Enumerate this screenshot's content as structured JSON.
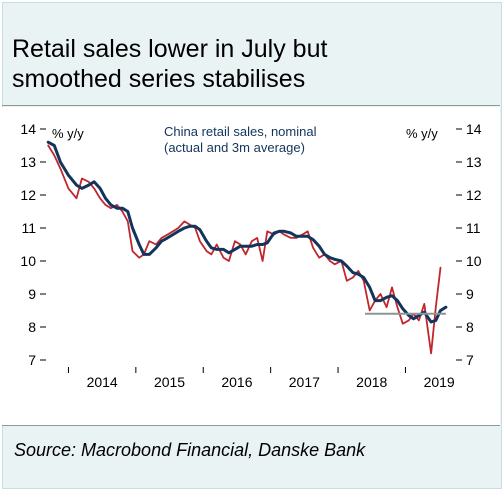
{
  "title_line1": "Retail sales lower in July but",
  "title_line2": "smoothed series stabilises",
  "source": "Source: Macrobond Financial, Danske Bank",
  "colors": {
    "panel_bg": "#e9f3f3",
    "actual": "#c0272d",
    "average": "#13345c",
    "reference": "#8c9596"
  },
  "chart_data": {
    "type": "line",
    "annotation_line1": "China retail sales, nominal",
    "annotation_line2": "(actual and 3m average)",
    "ylabel_left": "% y/y",
    "ylabel_right": "% y/y",
    "ylim": [
      7,
      14
    ],
    "yticks": [
      7,
      8,
      9,
      10,
      11,
      12,
      13,
      14
    ],
    "xlim": [
      2013.667,
      2019.75
    ],
    "xtick_labels": [
      "2014",
      "2015",
      "2016",
      "2017",
      "2018",
      "2019"
    ],
    "grid": false,
    "reference_line": {
      "value": 8.4,
      "from": 2018.4,
      "to": 2019.6
    },
    "series": [
      {
        "role": "actual",
        "x": [
          2013.7,
          2013.79,
          2013.88,
          2014.0,
          2014.12,
          2014.2,
          2014.3,
          2014.38,
          2014.47,
          2014.55,
          2014.63,
          2014.72,
          2014.8,
          2014.88,
          2014.95,
          2015.05,
          2015.12,
          2015.2,
          2015.3,
          2015.38,
          2015.47,
          2015.55,
          2015.63,
          2015.72,
          2015.8,
          2015.88,
          2015.95,
          2016.05,
          2016.12,
          2016.2,
          2016.3,
          2016.38,
          2016.47,
          2016.55,
          2016.63,
          2016.72,
          2016.8,
          2016.88,
          2016.95,
          2017.05,
          2017.13,
          2017.2,
          2017.3,
          2017.38,
          2017.47,
          2017.55,
          2017.63,
          2017.72,
          2017.8,
          2017.88,
          2017.95,
          2018.05,
          2018.13,
          2018.22,
          2018.3,
          2018.38,
          2018.47,
          2018.55,
          2018.63,
          2018.72,
          2018.8,
          2018.88,
          2018.96,
          2019.05,
          2019.12,
          2019.2,
          2019.28,
          2019.38,
          2019.45,
          2019.52
        ],
        "values": [
          13.5,
          13.2,
          12.8,
          12.2,
          11.9,
          12.5,
          12.4,
          12.2,
          11.9,
          11.7,
          11.6,
          11.7,
          11.5,
          11.2,
          10.3,
          10.1,
          10.2,
          10.6,
          10.5,
          10.7,
          10.8,
          10.9,
          11.0,
          11.2,
          11.1,
          11.0,
          10.6,
          10.3,
          10.2,
          10.5,
          10.1,
          10.0,
          10.6,
          10.5,
          10.2,
          10.6,
          10.7,
          10.0,
          10.9,
          10.8,
          10.9,
          10.8,
          10.7,
          10.7,
          10.8,
          10.9,
          10.4,
          10.1,
          10.2,
          10.0,
          9.9,
          10.0,
          9.4,
          9.5,
          9.7,
          9.4,
          8.5,
          8.8,
          9.0,
          8.6,
          9.2,
          8.6,
          8.1,
          8.2,
          8.4,
          8.2,
          8.7,
          7.2,
          8.6,
          9.8
        ]
      },
      {
        "role": "average",
        "x": [
          2013.7,
          2013.79,
          2013.88,
          2014.0,
          2014.12,
          2014.2,
          2014.3,
          2014.38,
          2014.47,
          2014.55,
          2014.63,
          2014.72,
          2014.8,
          2014.88,
          2014.95,
          2015.05,
          2015.12,
          2015.2,
          2015.3,
          2015.38,
          2015.47,
          2015.55,
          2015.63,
          2015.72,
          2015.8,
          2015.88,
          2015.95,
          2016.05,
          2016.12,
          2016.2,
          2016.3,
          2016.38,
          2016.47,
          2016.55,
          2016.63,
          2016.72,
          2016.8,
          2016.88,
          2016.95,
          2017.05,
          2017.13,
          2017.2,
          2017.3,
          2017.38,
          2017.47,
          2017.55,
          2017.63,
          2017.72,
          2017.8,
          2017.88,
          2017.95,
          2018.05,
          2018.13,
          2018.22,
          2018.3,
          2018.38,
          2018.47,
          2018.55,
          2018.63,
          2018.72,
          2018.8,
          2018.88,
          2018.96,
          2019.05,
          2019.12,
          2019.2,
          2019.28,
          2019.38,
          2019.45,
          2019.52,
          2019.6
        ],
        "values": [
          13.6,
          13.5,
          13.0,
          12.6,
          12.3,
          12.2,
          12.3,
          12.4,
          12.2,
          11.9,
          11.7,
          11.6,
          11.6,
          11.5,
          11.0,
          10.5,
          10.2,
          10.2,
          10.4,
          10.6,
          10.7,
          10.8,
          10.9,
          11.0,
          11.05,
          11.05,
          10.95,
          10.6,
          10.4,
          10.35,
          10.35,
          10.25,
          10.35,
          10.45,
          10.45,
          10.45,
          10.5,
          10.5,
          10.55,
          10.85,
          10.9,
          10.9,
          10.85,
          10.75,
          10.75,
          10.75,
          10.65,
          10.45,
          10.2,
          10.1,
          10.05,
          10.0,
          9.85,
          9.65,
          9.6,
          9.5,
          9.2,
          8.8,
          8.8,
          8.9,
          8.95,
          8.8,
          8.55,
          8.35,
          8.25,
          8.35,
          8.45,
          8.15,
          8.2,
          8.5,
          8.6
        ]
      }
    ]
  }
}
